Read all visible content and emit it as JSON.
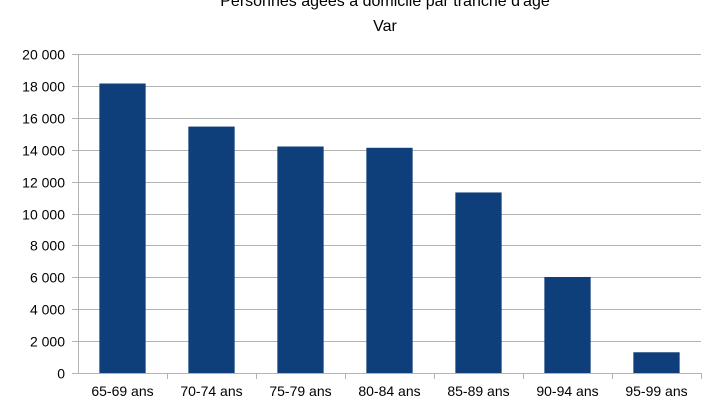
{
  "chart_data": {
    "type": "bar",
    "title": "Personnes âgées à domicile par tranche d'âge",
    "subtitle": "Var",
    "xlabel": "",
    "ylabel": "",
    "categories": [
      "65-69 ans",
      "70-74 ans",
      "75-79 ans",
      "80-84 ans",
      "85-89 ans",
      "90-94 ans",
      "95-99 ans"
    ],
    "values": [
      18150,
      15450,
      14200,
      14120,
      11320,
      6020,
      1300
    ],
    "ylim": [
      0,
      20000
    ],
    "yticks": [
      {
        "value": 0,
        "label": "0"
      },
      {
        "value": 2000,
        "label": "2 000"
      },
      {
        "value": 4000,
        "label": "4 000"
      },
      {
        "value": 6000,
        "label": "6 000"
      },
      {
        "value": 8000,
        "label": "8 000"
      },
      {
        "value": 10000,
        "label": "10 000"
      },
      {
        "value": 12000,
        "label": "12 000"
      },
      {
        "value": 14000,
        "label": "14 000"
      },
      {
        "value": 16000,
        "label": "16 000"
      },
      {
        "value": 18000,
        "label": "18 000"
      },
      {
        "value": 20000,
        "label": "20 000"
      }
    ],
    "grid": true,
    "legend": "none",
    "bar_color": "#0f3f7a",
    "grid_color": "#b3b3b3"
  }
}
